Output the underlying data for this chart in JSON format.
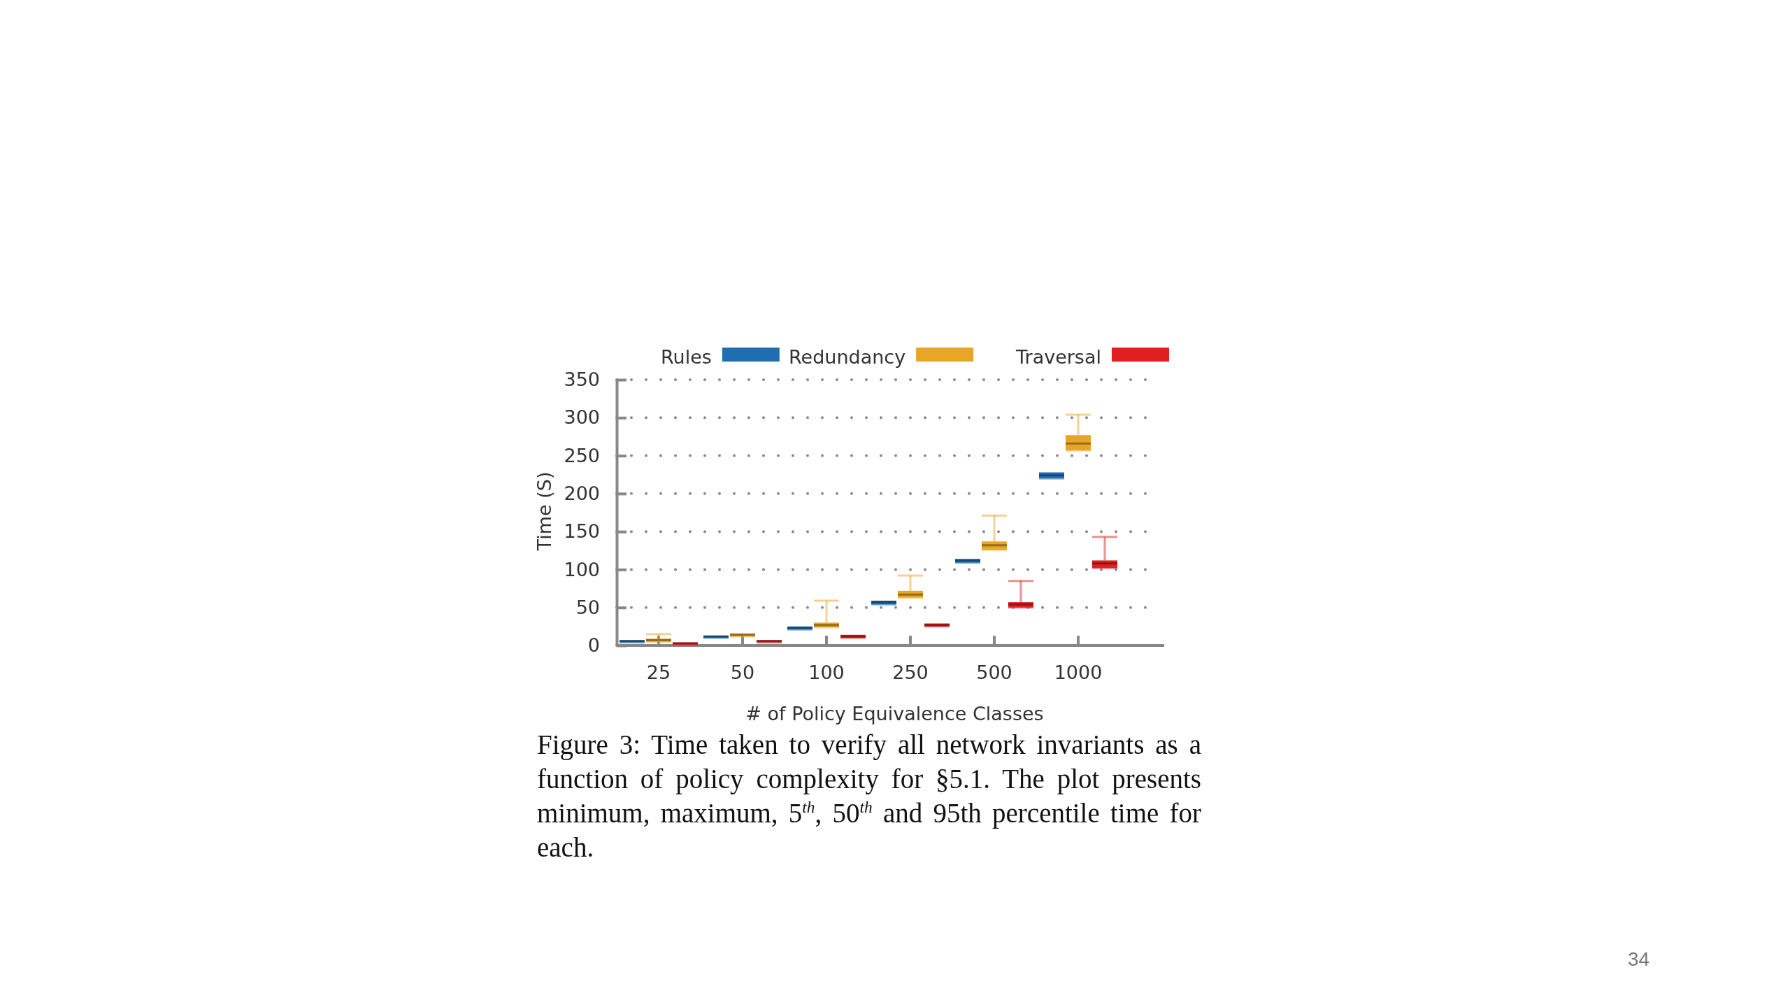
{
  "chart_data": {
    "type": "box",
    "xlabel": "# of Policy Equivalence Classes",
    "ylabel": "Time (S)",
    "categories": [
      "25",
      "50",
      "100",
      "250",
      "500",
      "1000"
    ],
    "ylim": [
      0,
      350
    ],
    "yticks": [
      0,
      50,
      100,
      150,
      200,
      250,
      300,
      350
    ],
    "grid": "y",
    "legend": "top",
    "series": [
      {
        "name": "Rules",
        "color": "#1f6fb0",
        "boxes": [
          {
            "low": 4,
            "q1": 4,
            "median": 6,
            "q3": 7,
            "high": 7
          },
          {
            "low": 10,
            "q1": 10,
            "median": 12,
            "q3": 13,
            "high": 13
          },
          {
            "low": 21,
            "q1": 21,
            "median": 23,
            "q3": 25,
            "high": 25
          },
          {
            "low": 54,
            "q1": 54,
            "median": 57,
            "q3": 59,
            "high": 59
          },
          {
            "low": 109,
            "q1": 109,
            "median": 112,
            "q3": 114,
            "high": 114
          },
          {
            "low": 220,
            "q1": 220,
            "median": 224,
            "q3": 228,
            "high": 228
          }
        ]
      },
      {
        "name": "Redundancy",
        "color": "#e8a526",
        "boxes": [
          {
            "low": 5,
            "q1": 5,
            "median": 7,
            "q3": 9,
            "high": 15
          },
          {
            "low": 12,
            "q1": 12,
            "median": 14,
            "q3": 16,
            "high": 16
          },
          {
            "low": 24,
            "q1": 24,
            "median": 27,
            "q3": 30,
            "high": 59
          },
          {
            "low": 63,
            "q1": 63,
            "median": 67,
            "q3": 72,
            "high": 92
          },
          {
            "low": 126,
            "q1": 126,
            "median": 132,
            "q3": 137,
            "high": 171
          },
          {
            "low": 257,
            "q1": 257,
            "median": 266,
            "q3": 277,
            "high": 304
          }
        ]
      },
      {
        "name": "Traversal",
        "color": "#e02020",
        "boxes": [
          {
            "low": 1,
            "q1": 1,
            "median": 3,
            "q3": 4,
            "high": 4
          },
          {
            "low": 4,
            "q1": 4,
            "median": 6,
            "q3": 7,
            "high": 7
          },
          {
            "low": 10,
            "q1": 10,
            "median": 12,
            "q3": 14,
            "high": 14
          },
          {
            "low": 25,
            "q1": 25,
            "median": 27,
            "q3": 29,
            "high": 29
          },
          {
            "low": 50,
            "q1": 50,
            "median": 54,
            "q3": 57,
            "high": 85
          },
          {
            "low": 102,
            "q1": 102,
            "median": 108,
            "q3": 112,
            "high": 143
          }
        ]
      }
    ],
    "annotations": [
      "Figure 3: Time taken to verify all network invariants as a function of policy complexity for §5.1. The plot presents minimum, maximum, 5$^{th}$, 50$^{th}$ and 95th percentile time for each.",
      "34"
    ]
  }
}
